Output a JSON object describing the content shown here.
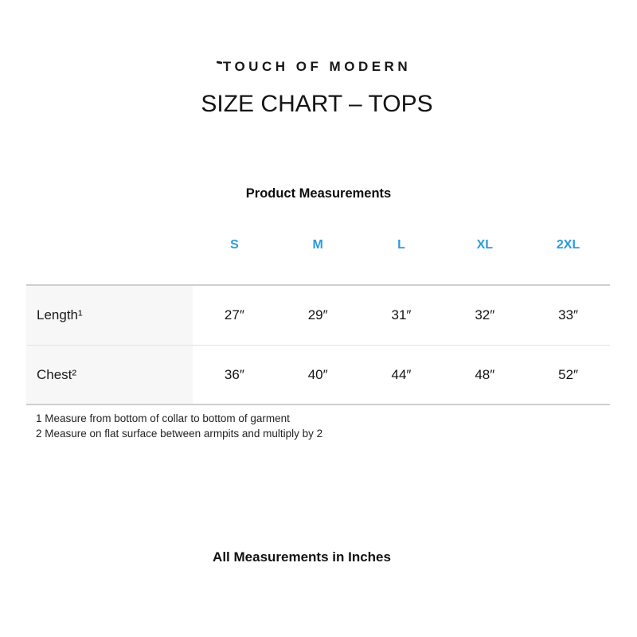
{
  "logo": {
    "text": "TOUCH OF MODERN"
  },
  "title": "SIZE CHART – TOPS",
  "section_title": "Product Measurements",
  "table": {
    "size_headers": [
      "S",
      "M",
      "L",
      "XL",
      "2XL"
    ],
    "rows": [
      {
        "label": "Length¹",
        "values": [
          "27″",
          "29″",
          "31″",
          "32″",
          "33″"
        ]
      },
      {
        "label": "Chest²",
        "values": [
          "36″",
          "40″",
          "44″",
          "48″",
          "52″"
        ]
      }
    ]
  },
  "footnotes": [
    "1 Measure from bottom of collar to bottom of garment",
    "2 Measure on flat surface between armpits and multiply by 2"
  ],
  "footer": "All Measurements in Inches",
  "colors": {
    "accent_blue": "#2E9BDB",
    "label_column_bg": "#F7F7F7",
    "table_border": "#CFCFCF",
    "row_divider": "#E2E2E2",
    "text": "#1B1B1B",
    "background": "#FFFFFF"
  }
}
